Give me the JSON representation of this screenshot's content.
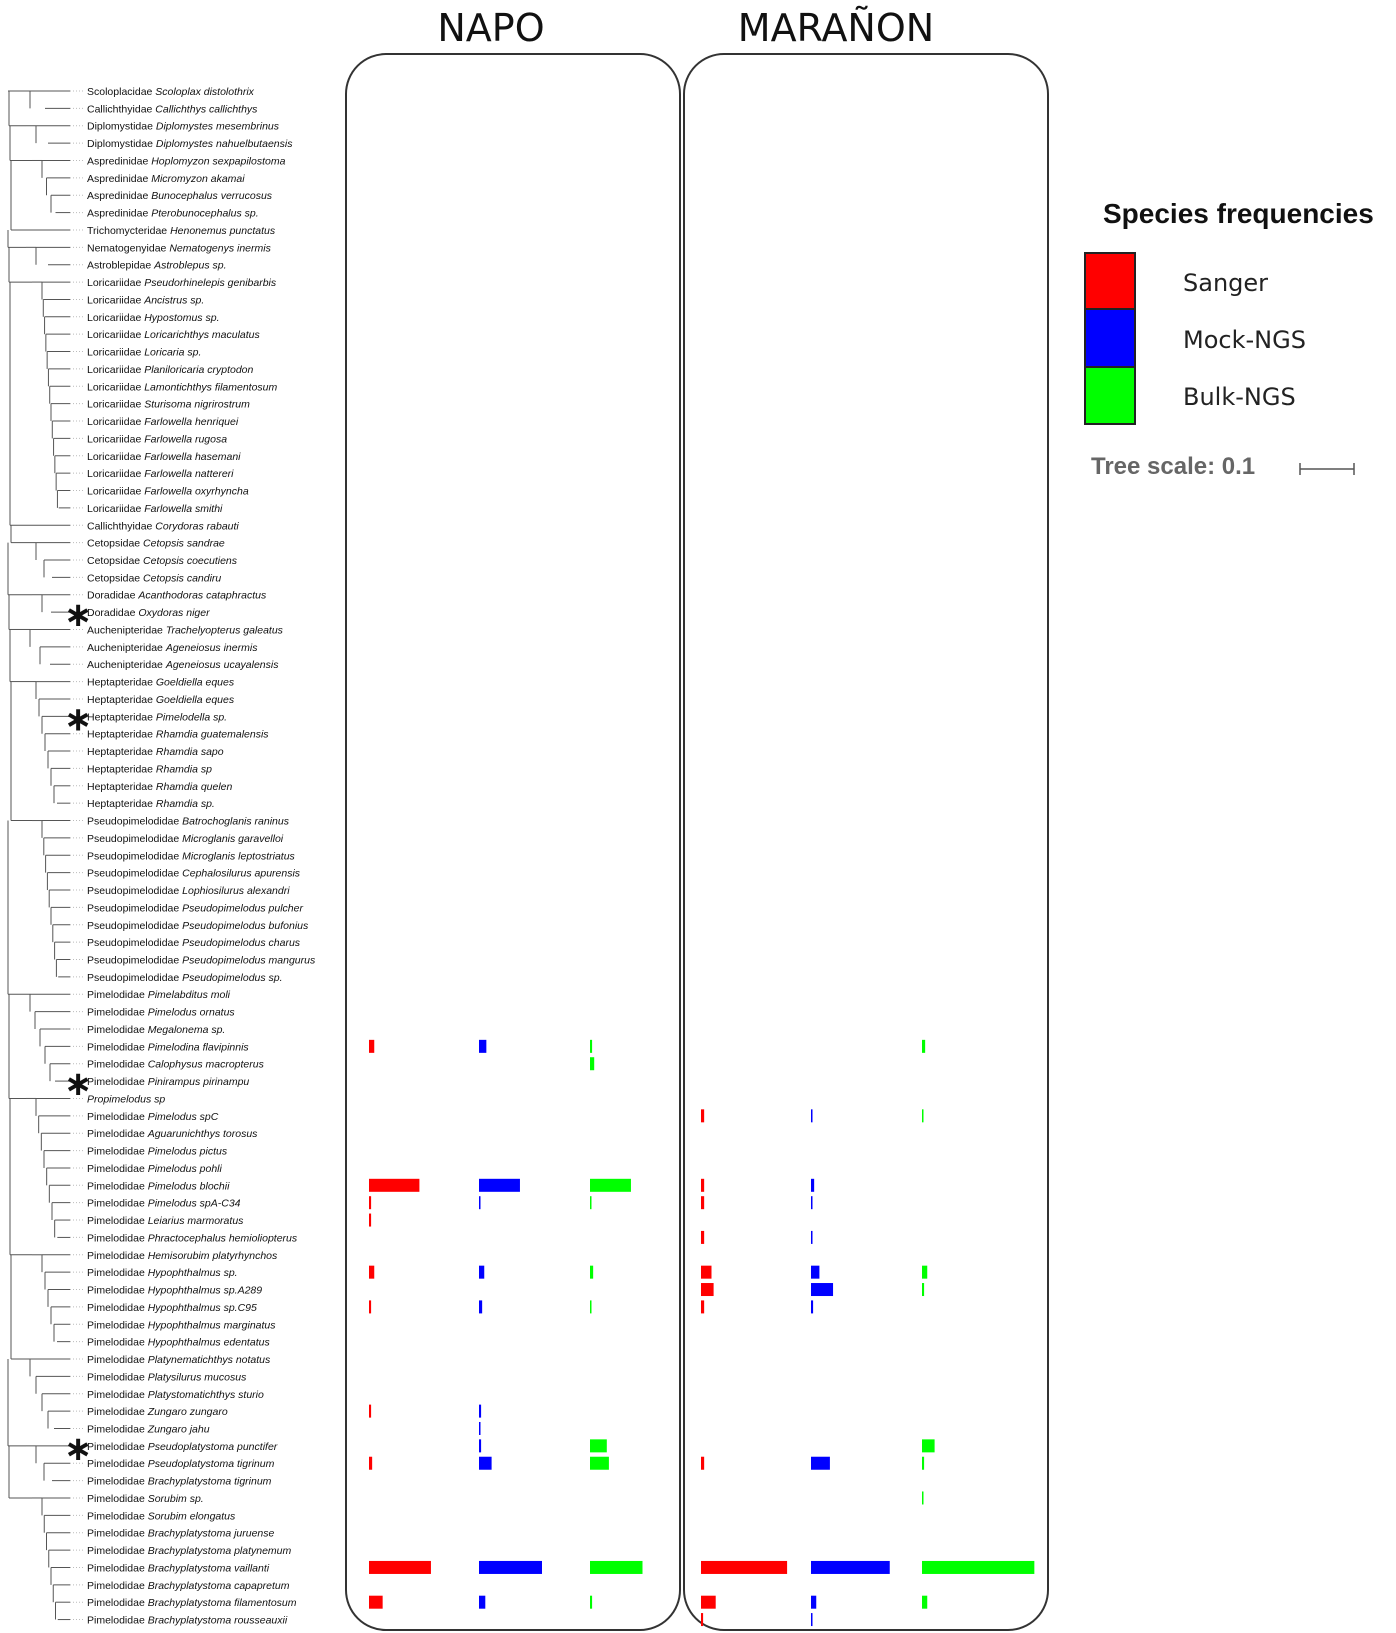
{
  "chart_data": {
    "type": "bar",
    "title": "",
    "panels": [
      "NAPO",
      "MARAÑON"
    ],
    "series": [
      {
        "name": "Sanger",
        "color": "#ff0000"
      },
      {
        "name": "Mock-NGS",
        "color": "#0000ff"
      },
      {
        "name": "Bulk-NGS",
        "color": "#00ff00"
      }
    ],
    "legend": {
      "title": "Species frequencies",
      "position": "right"
    },
    "tree_scale_label": "Tree scale: 0.1",
    "value_unit": "relative frequency (0-1, estimated)",
    "taxa": [
      {
        "family": "Scoloplacidae",
        "species": "Scoloplax distolothrix",
        "marked": false
      },
      {
        "family": "Callichthyidae",
        "species": "Callichthys callichthys",
        "marked": false
      },
      {
        "family": "Diplomystidae",
        "species": "Diplomystes mesembrinus",
        "marked": false
      },
      {
        "family": "Diplomystidae",
        "species": "Diplomystes nahuelbutaensis",
        "marked": false
      },
      {
        "family": "Aspredinidae",
        "species": "Hoplomyzon sexpapilostoma",
        "marked": false
      },
      {
        "family": "Aspredinidae",
        "species": "Micromyzon akamai",
        "marked": false
      },
      {
        "family": "Aspredinidae",
        "species": "Bunocephalus verrucosus",
        "marked": false
      },
      {
        "family": "Aspredinidae",
        "species": "Pterobunocephalus sp.",
        "marked": false
      },
      {
        "family": "Trichomycteridae",
        "species": "Henonemus punctatus",
        "marked": false
      },
      {
        "family": "Nematogenyidae",
        "species": "Nematogenys inermis",
        "marked": false
      },
      {
        "family": "Astroblepidae",
        "species": "Astroblepus sp.",
        "marked": false
      },
      {
        "family": "Loricariidae",
        "species": "Pseudorhinelepis genibarbis",
        "marked": false
      },
      {
        "family": "Loricariidae",
        "species": "Ancistrus sp.",
        "marked": false
      },
      {
        "family": "Loricariidae",
        "species": "Hypostomus sp.",
        "marked": false
      },
      {
        "family": "Loricariidae",
        "species": "Loricarichthys maculatus",
        "marked": false
      },
      {
        "family": "Loricariidae",
        "species": "Loricaria sp.",
        "marked": false
      },
      {
        "family": "Loricariidae",
        "species": "Planiloricaria cryptodon",
        "marked": false
      },
      {
        "family": "Loricariidae",
        "species": "Lamontichthys filamentosum",
        "marked": false
      },
      {
        "family": "Loricariidae",
        "species": "Sturisoma nigrirostrum",
        "marked": false
      },
      {
        "family": "Loricariidae",
        "species": "Farlowella henriquei",
        "marked": false
      },
      {
        "family": "Loricariidae",
        "species": "Farlowella rugosa",
        "marked": false
      },
      {
        "family": "Loricariidae",
        "species": "Farlowella hasemani",
        "marked": false
      },
      {
        "family": "Loricariidae",
        "species": "Farlowella nattereri",
        "marked": false
      },
      {
        "family": "Loricariidae",
        "species": "Farlowella oxyrhyncha",
        "marked": false
      },
      {
        "family": "Loricariidae",
        "species": "Farlowella smithi",
        "marked": false
      },
      {
        "family": "Callichthyidae",
        "species": "Corydoras rabauti",
        "marked": false
      },
      {
        "family": "Cetopsidae",
        "species": "Cetopsis sandrae",
        "marked": false
      },
      {
        "family": "Cetopsidae",
        "species": "Cetopsis coecutiens",
        "marked": false
      },
      {
        "family": "Cetopsidae",
        "species": "Cetopsis candiru",
        "marked": false
      },
      {
        "family": "Doradidae",
        "species": "Acanthodoras cataphractus",
        "marked": false
      },
      {
        "family": "Doradidae",
        "species": "Oxydoras niger",
        "marked": true
      },
      {
        "family": "Auchenipteridae",
        "species": "Trachelyopterus galeatus",
        "marked": false
      },
      {
        "family": "Auchenipteridae",
        "species": "Ageneiosus inermis",
        "marked": false
      },
      {
        "family": "Auchenipteridae",
        "species": "Ageneiosus ucayalensis",
        "marked": false
      },
      {
        "family": "Heptapteridae",
        "species": "Goeldiella eques",
        "marked": false
      },
      {
        "family": "Heptapteridae",
        "species": "Goeldiella eques",
        "marked": false
      },
      {
        "family": "Heptapteridae",
        "species": "Pimelodella sp.",
        "marked": true
      },
      {
        "family": "Heptapteridae",
        "species": "Rhamdia guatemalensis",
        "marked": false
      },
      {
        "family": "Heptapteridae",
        "species": "Rhamdia sapo",
        "marked": false
      },
      {
        "family": "Heptapteridae",
        "species": "Rhamdia sp",
        "marked": false
      },
      {
        "family": "Heptapteridae",
        "species": "Rhamdia quelen",
        "marked": false
      },
      {
        "family": "Heptapteridae",
        "species": "Rhamdia sp.",
        "marked": false
      },
      {
        "family": "Pseudopimelodidae",
        "species": "Batrochoglanis raninus",
        "marked": false
      },
      {
        "family": "Pseudopimelodidae",
        "species": "Microglanis garavelloi",
        "marked": false
      },
      {
        "family": "Pseudopimelodidae",
        "species": "Microglanis leptostriatus",
        "marked": false
      },
      {
        "family": "Pseudopimelodidae",
        "species": "Cephalosilurus apurensis",
        "marked": false
      },
      {
        "family": "Pseudopimelodidae",
        "species": "Lophiosilurus alexandri",
        "marked": false
      },
      {
        "family": "Pseudopimelodidae",
        "species": "Pseudopimelodus pulcher",
        "marked": false
      },
      {
        "family": "Pseudopimelodidae",
        "species": "Pseudopimelodus bufonius",
        "marked": false
      },
      {
        "family": "Pseudopimelodidae",
        "species": "Pseudopimelodus charus",
        "marked": false
      },
      {
        "family": "Pseudopimelodidae",
        "species": "Pseudopimelodus mangurus",
        "marked": false
      },
      {
        "family": "Pseudopimelodidae",
        "species": "Pseudopimelodus sp.",
        "marked": false
      },
      {
        "family": "Pimelodidae",
        "species": "Pimelabditus moli",
        "marked": false
      },
      {
        "family": "Pimelodidae",
        "species": "Pimelodus ornatus",
        "marked": false
      },
      {
        "family": "Pimelodidae",
        "species": "Megalonema sp.",
        "marked": false
      },
      {
        "family": "Pimelodidae",
        "species": "Pimelodina flavipinnis",
        "marked": false
      },
      {
        "family": "Pimelodidae",
        "species": "Calophysus macropterus",
        "marked": false
      },
      {
        "family": "Pimelodidae",
        "species": "Pinirampus pirinampu",
        "marked": true
      },
      {
        "family": "",
        "species": "Propimelodus sp",
        "marked": false
      },
      {
        "family": "Pimelodidae",
        "species": "Pimelodus spC",
        "marked": false
      },
      {
        "family": "Pimelodidae",
        "species": "Aguarunichthys torosus",
        "marked": false
      },
      {
        "family": "Pimelodidae",
        "species": "Pimelodus pictus",
        "marked": false
      },
      {
        "family": "Pimelodidae",
        "species": "Pimelodus pohli",
        "marked": false
      },
      {
        "family": "Pimelodidae",
        "species": "Pimelodus blochii",
        "marked": false
      },
      {
        "family": "Pimelodidae",
        "species": "Pimelodus spA-C34",
        "marked": false
      },
      {
        "family": "Pimelodidae",
        "species": "Leiarius marmoratus",
        "marked": false
      },
      {
        "family": "Pimelodidae",
        "species": "Phractocephalus hemioliopterus",
        "marked": false
      },
      {
        "family": "Pimelodidae",
        "species": "Hemisorubim platyrhynchos",
        "marked": false
      },
      {
        "family": "Pimelodidae",
        "species": "Hypophthalmus sp.",
        "marked": false
      },
      {
        "family": "Pimelodidae",
        "species": "Hypophthalmus sp.A289",
        "marked": false
      },
      {
        "family": "Pimelodidae",
        "species": "Hypophthalmus sp.C95",
        "marked": false
      },
      {
        "family": "Pimelodidae",
        "species": "Hypophthalmus marginatus",
        "marked": false
      },
      {
        "family": "Pimelodidae",
        "species": "Hypophthalmus edentatus",
        "marked": false
      },
      {
        "family": "Pimelodidae",
        "species": "Platynematichthys notatus",
        "marked": false
      },
      {
        "family": "Pimelodidae",
        "species": "Platysilurus mucosus",
        "marked": false
      },
      {
        "family": "Pimelodidae",
        "species": "Platystomatichthys sturio",
        "marked": false
      },
      {
        "family": "Pimelodidae",
        "species": "Zungaro zungaro",
        "marked": false
      },
      {
        "family": "Pimelodidae",
        "species": "Zungaro jahu",
        "marked": false
      },
      {
        "family": "Pimelodidae",
        "species": "Pseudoplatystoma punctifer",
        "marked": true
      },
      {
        "family": "Pimelodidae",
        "species": "Pseudoplatystoma tigrinum",
        "marked": false
      },
      {
        "family": "Pimelodidae",
        "species": "Brachyplatystoma tigrinum",
        "marked": false
      },
      {
        "family": "Pimelodidae",
        "species": "Sorubim sp.",
        "marked": false
      },
      {
        "family": "Pimelodidae",
        "species": "Sorubim elongatus",
        "marked": false
      },
      {
        "family": "Pimelodidae",
        "species": "Brachyplatystoma juruense",
        "marked": false
      },
      {
        "family": "Pimelodidae",
        "species": "Brachyplatystoma platynemum",
        "marked": false
      },
      {
        "family": "Pimelodidae",
        "species": "Brachyplatystoma vaillanti",
        "marked": false
      },
      {
        "family": "Pimelodidae",
        "species": "Brachyplatystoma capapretum",
        "marked": false
      },
      {
        "family": "Pimelodidae",
        "species": "Brachyplatystoma filamentosum",
        "marked": false
      },
      {
        "family": "Pimelodidae",
        "species": "Brachyplatystoma rousseauxii",
        "marked": false
      }
    ],
    "bars": [
      {
        "row": 55,
        "panel": 0,
        "series": 0,
        "value": 0.05
      },
      {
        "row": 55,
        "panel": 0,
        "series": 1,
        "value": 0.07
      },
      {
        "row": 55,
        "panel": 0,
        "series": 2,
        "value": 0.02
      },
      {
        "row": 56,
        "panel": 0,
        "series": 2,
        "value": 0.04
      },
      {
        "row": 55,
        "panel": 1,
        "series": 2,
        "value": 0.03
      },
      {
        "row": 59,
        "panel": 1,
        "series": 0,
        "value": 0.03
      },
      {
        "row": 59,
        "panel": 1,
        "series": 1,
        "value": 0.01
      },
      {
        "row": 59,
        "panel": 1,
        "series": 2,
        "value": 0.01
      },
      {
        "row": 63,
        "panel": 0,
        "series": 0,
        "value": 0.48
      },
      {
        "row": 63,
        "panel": 0,
        "series": 1,
        "value": 0.39
      },
      {
        "row": 63,
        "panel": 0,
        "series": 2,
        "value": 0.39
      },
      {
        "row": 64,
        "panel": 0,
        "series": 0,
        "value": 0.02
      },
      {
        "row": 64,
        "panel": 0,
        "series": 1,
        "value": 0.01
      },
      {
        "row": 64,
        "panel": 0,
        "series": 2,
        "value": 0.01
      },
      {
        "row": 63,
        "panel": 1,
        "series": 0,
        "value": 0.03
      },
      {
        "row": 63,
        "panel": 1,
        "series": 1,
        "value": 0.03
      },
      {
        "row": 64,
        "panel": 1,
        "series": 0,
        "value": 0.03
      },
      {
        "row": 64,
        "panel": 1,
        "series": 1,
        "value": 0.01
      },
      {
        "row": 65,
        "panel": 0,
        "series": 0,
        "value": 0.02
      },
      {
        "row": 66,
        "panel": 1,
        "series": 0,
        "value": 0.03
      },
      {
        "row": 66,
        "panel": 1,
        "series": 1,
        "value": 0.01
      },
      {
        "row": 68,
        "panel": 0,
        "series": 0,
        "value": 0.05
      },
      {
        "row": 68,
        "panel": 0,
        "series": 1,
        "value": 0.05
      },
      {
        "row": 68,
        "panel": 0,
        "series": 2,
        "value": 0.03
      },
      {
        "row": 68,
        "panel": 1,
        "series": 0,
        "value": 0.1
      },
      {
        "row": 68,
        "panel": 1,
        "series": 1,
        "value": 0.08
      },
      {
        "row": 68,
        "panel": 1,
        "series": 2,
        "value": 0.05
      },
      {
        "row": 69,
        "panel": 1,
        "series": 0,
        "value": 0.12
      },
      {
        "row": 69,
        "panel": 1,
        "series": 1,
        "value": 0.21
      },
      {
        "row": 69,
        "panel": 1,
        "series": 2,
        "value": 0.02
      },
      {
        "row": 70,
        "panel": 0,
        "series": 0,
        "value": 0.02
      },
      {
        "row": 70,
        "panel": 0,
        "series": 1,
        "value": 0.03
      },
      {
        "row": 70,
        "panel": 0,
        "series": 2,
        "value": 0.01
      },
      {
        "row": 70,
        "panel": 1,
        "series": 0,
        "value": 0.03
      },
      {
        "row": 70,
        "panel": 1,
        "series": 1,
        "value": 0.02
      },
      {
        "row": 76,
        "panel": 0,
        "series": 0,
        "value": 0.02
      },
      {
        "row": 76,
        "panel": 0,
        "series": 1,
        "value": 0.02
      },
      {
        "row": 77,
        "panel": 0,
        "series": 1,
        "value": 0.01
      },
      {
        "row": 78,
        "panel": 0,
        "series": 1,
        "value": 0.02
      },
      {
        "row": 78,
        "panel": 0,
        "series": 2,
        "value": 0.16
      },
      {
        "row": 78,
        "panel": 1,
        "series": 2,
        "value": 0.12
      },
      {
        "row": 79,
        "panel": 0,
        "series": 0,
        "value": 0.03
      },
      {
        "row": 79,
        "panel": 0,
        "series": 1,
        "value": 0.12
      },
      {
        "row": 79,
        "panel": 0,
        "series": 2,
        "value": 0.18
      },
      {
        "row": 79,
        "panel": 1,
        "series": 0,
        "value": 0.03
      },
      {
        "row": 79,
        "panel": 1,
        "series": 1,
        "value": 0.18
      },
      {
        "row": 79,
        "panel": 1,
        "series": 2,
        "value": 0.02
      },
      {
        "row": 81,
        "panel": 1,
        "series": 2,
        "value": 0.01
      },
      {
        "row": 85,
        "panel": 0,
        "series": 0,
        "value": 0.59
      },
      {
        "row": 85,
        "panel": 0,
        "series": 1,
        "value": 0.6
      },
      {
        "row": 85,
        "panel": 0,
        "series": 2,
        "value": 0.5
      },
      {
        "row": 85,
        "panel": 1,
        "series": 0,
        "value": 0.82
      },
      {
        "row": 85,
        "panel": 1,
        "series": 1,
        "value": 0.75
      },
      {
        "row": 85,
        "panel": 1,
        "series": 2,
        "value": 1.07
      },
      {
        "row": 87,
        "panel": 0,
        "series": 0,
        "value": 0.13
      },
      {
        "row": 87,
        "panel": 0,
        "series": 1,
        "value": 0.06
      },
      {
        "row": 87,
        "panel": 0,
        "series": 2,
        "value": 0.02
      },
      {
        "row": 87,
        "panel": 1,
        "series": 0,
        "value": 0.14
      },
      {
        "row": 87,
        "panel": 1,
        "series": 1,
        "value": 0.05
      },
      {
        "row": 87,
        "panel": 1,
        "series": 2,
        "value": 0.05
      },
      {
        "row": 88,
        "panel": 1,
        "series": 0,
        "value": 0.02
      },
      {
        "row": 88,
        "panel": 1,
        "series": 1,
        "value": 0.01
      }
    ]
  }
}
